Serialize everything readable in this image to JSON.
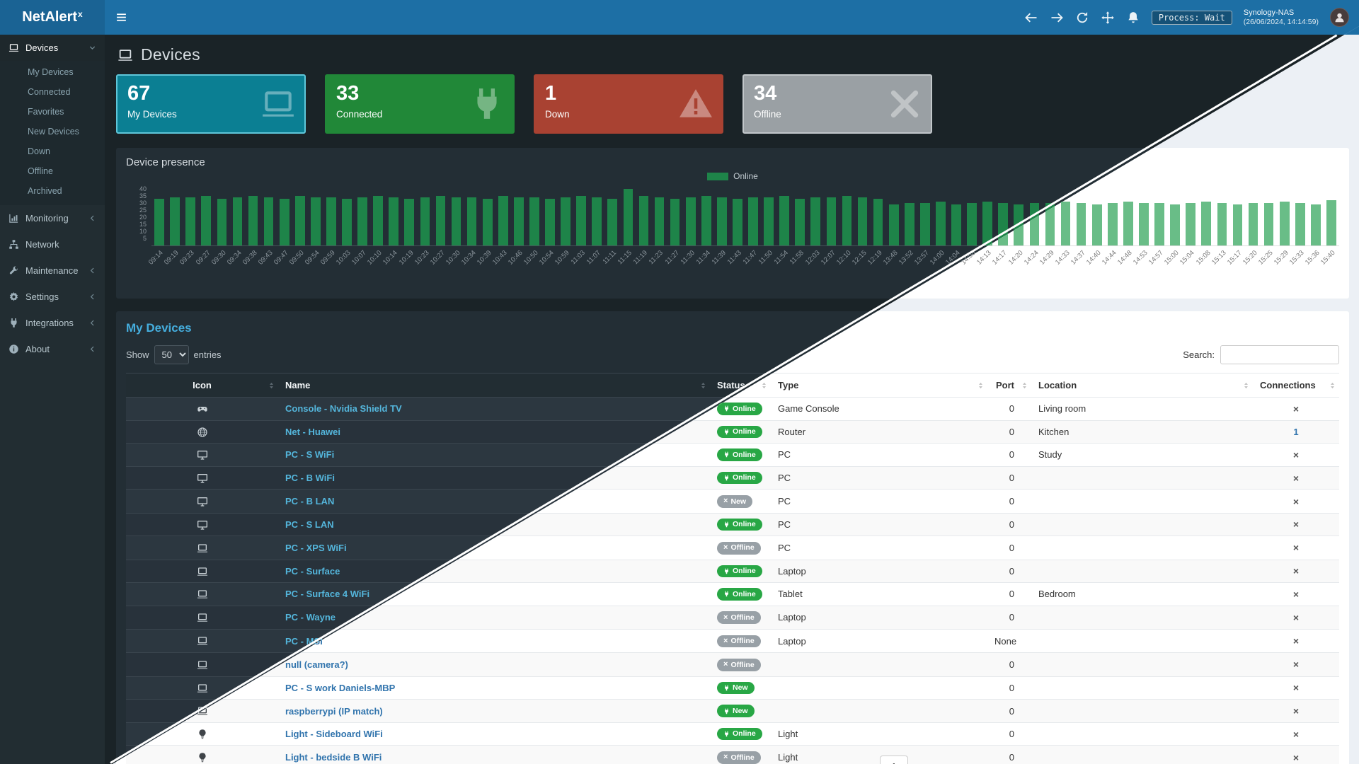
{
  "app": {
    "brand": "NetAlert",
    "brand_sup": "x"
  },
  "navbar": {
    "server_name": "Synology-NAS",
    "server_time": "(26/06/2024, 14:14:59)",
    "process_badge": "Process: Wait"
  },
  "sidebar": {
    "items": [
      {
        "label": "Devices",
        "icon": "laptop-icon",
        "expanded": true,
        "children": [
          "My Devices",
          "Connected",
          "Favorites",
          "New Devices",
          "Down",
          "Offline",
          "Archived"
        ]
      },
      {
        "label": "Monitoring",
        "icon": "chart-icon"
      },
      {
        "label": "Network",
        "icon": "network-icon"
      },
      {
        "label": "Maintenance",
        "icon": "wrench-icon"
      },
      {
        "label": "Settings",
        "icon": "gear-icon"
      },
      {
        "label": "Integrations",
        "icon": "plug-icon"
      },
      {
        "label": "About",
        "icon": "info-icon"
      }
    ]
  },
  "page": {
    "title": "Devices"
  },
  "cards": [
    {
      "value": "67",
      "label": "My Devices",
      "icon": "laptop-icon",
      "color": "#0b7f93",
      "selected": true
    },
    {
      "value": "33",
      "label": "Connected",
      "icon": "plug-icon",
      "color": "#218838",
      "selected": false
    },
    {
      "value": "1",
      "label": "Down",
      "icon": "warning-icon",
      "color": "#a94232",
      "selected": false
    },
    {
      "value": "34",
      "label": "Offline",
      "icon": "x-icon",
      "color": "#9aa0a4",
      "selected": false
    }
  ],
  "presence": {
    "title": "Device presence",
    "legend": "Online"
  },
  "chart_data": {
    "type": "bar",
    "title": "Device presence",
    "legend": [
      "Online"
    ],
    "legend_position": "top-center",
    "grid": false,
    "ylim": [
      0,
      40
    ],
    "yticks": [
      5,
      10,
      15,
      20,
      25,
      30,
      35,
      40
    ],
    "x_labels": [
      "09:14",
      "09:19",
      "09:23",
      "09:27",
      "09:30",
      "09:34",
      "09:38",
      "09:43",
      "09:47",
      "09:50",
      "09:54",
      "09:59",
      "10:03",
      "10:07",
      "10:10",
      "10:14",
      "10:19",
      "10:23",
      "10:27",
      "10:30",
      "10:34",
      "10:39",
      "10:43",
      "10:46",
      "10:50",
      "10:54",
      "10:59",
      "11:03",
      "11:07",
      "11:11",
      "11:15",
      "11:19",
      "11:23",
      "11:27",
      "11:30",
      "11:34",
      "11:39",
      "11:43",
      "11:47",
      "11:50",
      "11:54",
      "11:58",
      "12:03",
      "12:07",
      "12:10",
      "12:15",
      "12:19",
      "13:48",
      "13:52",
      "13:57",
      "14:00",
      "14:04",
      "14:08",
      "14:13",
      "14:17",
      "14:20",
      "14:24",
      "14:29",
      "14:33",
      "14:37",
      "14:40",
      "14:44",
      "14:48",
      "14:53",
      "14:57",
      "15:00",
      "15:04",
      "15:08",
      "15:13",
      "15:17",
      "15:20",
      "15:25",
      "15:29",
      "15:33",
      "15:36",
      "15:40"
    ],
    "series": [
      {
        "name": "Online",
        "values": [
          33,
          34,
          34,
          35,
          33,
          34,
          35,
          34,
          33,
          35,
          34,
          34,
          33,
          34,
          35,
          34,
          33,
          34,
          35,
          34,
          34,
          33,
          35,
          34,
          34,
          33,
          34,
          35,
          34,
          33,
          40,
          35,
          34,
          33,
          34,
          35,
          34,
          33,
          34,
          34,
          35,
          33,
          34,
          34,
          35,
          34,
          33,
          29,
          30,
          30,
          31,
          29,
          30,
          31,
          30,
          29,
          30,
          30,
          31,
          30,
          29,
          30,
          31,
          30,
          30,
          29,
          30,
          31,
          30,
          29,
          30,
          30,
          31,
          30,
          29,
          32
        ]
      }
    ]
  },
  "devices_section": {
    "title": "My Devices",
    "show_label": "Show",
    "entries_label": "entries",
    "page_length": "50",
    "search_label": "Search:",
    "search_value": ""
  },
  "table": {
    "headers": [
      "Icon",
      "Name",
      "Status",
      "Type",
      "Port",
      "Location",
      "Connections"
    ],
    "rows": [
      {
        "icon": "gamepad-icon",
        "name": "Console - Nvidia Shield TV",
        "status": {
          "label": "Online",
          "variant": "green",
          "icon": "plug"
        },
        "type": "Game Console",
        "port": "0",
        "location": "Living room",
        "connections": "x"
      },
      {
        "icon": "globe-icon",
        "name": "Net - Huawei",
        "status": {
          "label": "Online",
          "variant": "green",
          "icon": "plug"
        },
        "type": "Router",
        "port": "0",
        "location": "Kitchen",
        "connections": "1"
      },
      {
        "icon": "desktop-icon",
        "name": "PC - S WiFi",
        "status": {
          "label": "Online",
          "variant": "green",
          "icon": "plug"
        },
        "type": "PC",
        "port": "0",
        "location": "Study",
        "connections": "x"
      },
      {
        "icon": "desktop-icon",
        "name": "PC - B WiFi",
        "status": {
          "label": "Online",
          "variant": "green",
          "icon": "plug"
        },
        "type": "PC",
        "port": "0",
        "location": "",
        "connections": "x"
      },
      {
        "icon": "desktop-icon",
        "name": "PC - B LAN",
        "status": {
          "label": "New",
          "variant": "gray",
          "icon": "x"
        },
        "type": "PC",
        "port": "0",
        "location": "",
        "connections": "x"
      },
      {
        "icon": "desktop-icon",
        "name": "PC - S LAN",
        "status": {
          "label": "Online",
          "variant": "green",
          "icon": "plug"
        },
        "type": "PC",
        "port": "0",
        "location": "",
        "connections": "x"
      },
      {
        "icon": "laptop-icon",
        "name": "PC - XPS WiFi",
        "status": {
          "label": "Offline",
          "variant": "gray",
          "icon": "x"
        },
        "type": "PC",
        "port": "0",
        "location": "",
        "connections": "x"
      },
      {
        "icon": "laptop-icon",
        "name": "PC - Surface",
        "status": {
          "label": "Online",
          "variant": "green",
          "icon": "plug"
        },
        "type": "Laptop",
        "port": "0",
        "location": "",
        "connections": "x"
      },
      {
        "icon": "laptop-icon",
        "name": "PC - Surface 4 WiFi",
        "status": {
          "label": "Online",
          "variant": "green",
          "icon": "plug"
        },
        "type": "Tablet",
        "port": "0",
        "location": "Bedroom",
        "connections": "x"
      },
      {
        "icon": "laptop-icon",
        "name": "PC - Wayne",
        "status": {
          "label": "Offline",
          "variant": "gray",
          "icon": "x"
        },
        "type": "Laptop",
        "port": "0",
        "location": "",
        "connections": "x"
      },
      {
        "icon": "laptop-icon",
        "name": "PC - MSI",
        "status": {
          "label": "Offline",
          "variant": "gray",
          "icon": "x"
        },
        "type": "Laptop",
        "port": "None",
        "location": "",
        "connections": "x"
      },
      {
        "icon": "laptop-icon",
        "name": "null (camera?)",
        "status": {
          "label": "Offline",
          "variant": "gray",
          "icon": "x"
        },
        "type": "",
        "port": "0",
        "location": "",
        "connections": "x"
      },
      {
        "icon": "laptop-icon",
        "name": "PC - S work Daniels-MBP",
        "status": {
          "label": "New",
          "variant": "green",
          "icon": "plug"
        },
        "type": "",
        "port": "0",
        "location": "",
        "connections": "x"
      },
      {
        "icon": "laptop-icon",
        "name": "raspberrypi (IP match)",
        "status": {
          "label": "New",
          "variant": "green",
          "icon": "plug"
        },
        "type": "",
        "port": "0",
        "location": "",
        "connections": "x"
      },
      {
        "icon": "lightbulb-icon",
        "name": "Light - Sideboard WiFi",
        "status": {
          "label": "Online",
          "variant": "green",
          "icon": "plug"
        },
        "type": "Light",
        "port": "0",
        "location": "",
        "connections": "x"
      },
      {
        "icon": "lightbulb-icon",
        "name": "Light - bedside B WiFi",
        "status": {
          "label": "Offline",
          "variant": "gray",
          "icon": "x"
        },
        "type": "Light",
        "port": "0",
        "location": "",
        "connections": "x"
      }
    ]
  },
  "pagination": {
    "current": "1"
  },
  "colors": {
    "navbar_blue": "#1d6fa5",
    "sidebar_bg": "#222d32",
    "badge_green": "#28a745",
    "badge_gray": "#98a0a6",
    "bar_dark": "#1e8449",
    "bar_light": "#69bd87",
    "link_dark": "#54b6dc",
    "link_light": "#3174ad"
  }
}
